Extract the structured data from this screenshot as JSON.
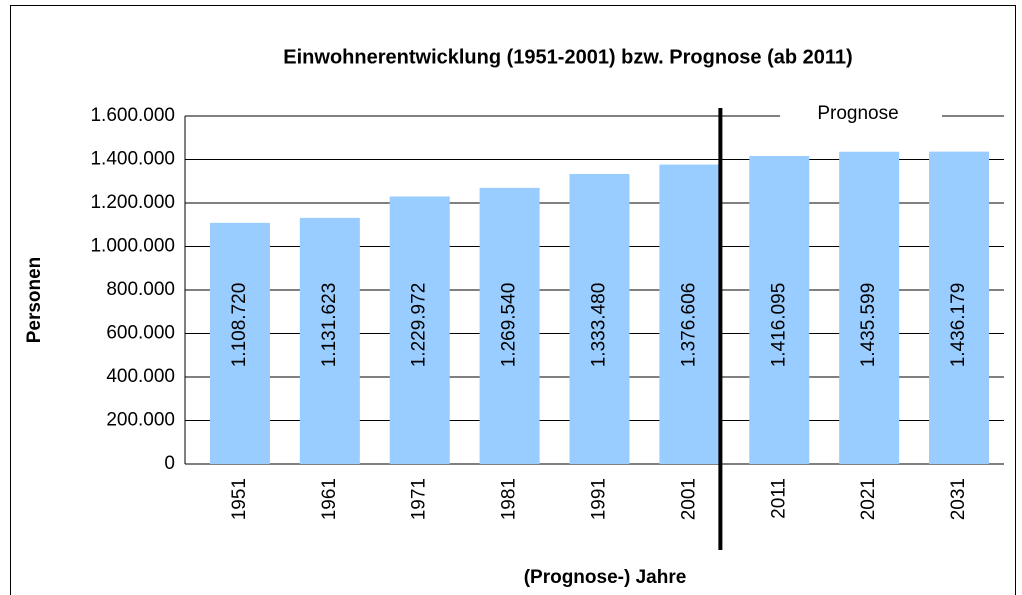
{
  "chart_data": {
    "type": "bar",
    "title": "Einwohnerentwicklung (1951-2001) bzw. Prognose (ab 2011)",
    "y_label": "Personen",
    "x_label": "(Prognose-) Jahre",
    "annotation": "Prognose",
    "categories": [
      "1951",
      "1961",
      "1971",
      "1981",
      "1991",
      "2001",
      "2011",
      "2021",
      "2031"
    ],
    "values": [
      1108720,
      1131623,
      1229972,
      1269540,
      1333480,
      1376606,
      1416095,
      1435599,
      1436179
    ],
    "value_labels": [
      "1.108.720",
      "1.131.623",
      "1.229.972",
      "1.269.540",
      "1.333.480",
      "1.376.606",
      "1.416.095",
      "1.435.599",
      "1.436.179"
    ],
    "color": "#99ccff",
    "ylim": [
      0,
      1600000
    ],
    "yticks": [
      0,
      {
        "value": 200000,
        "label": "200.000"
      },
      {
        "value": 400000,
        "label": "400.000"
      },
      {
        "value": 600000,
        "label": "600.000"
      },
      {
        "value": 800000,
        "label": "800.000"
      },
      {
        "value": 1000000,
        "label": "1.000.000"
      },
      {
        "value": 1200000,
        "label": "1.200.000"
      },
      {
        "value": 1400000,
        "label": "1.400.000"
      },
      {
        "value": 1600000,
        "label": "1.600.000"
      }
    ],
    "grid": true
  }
}
